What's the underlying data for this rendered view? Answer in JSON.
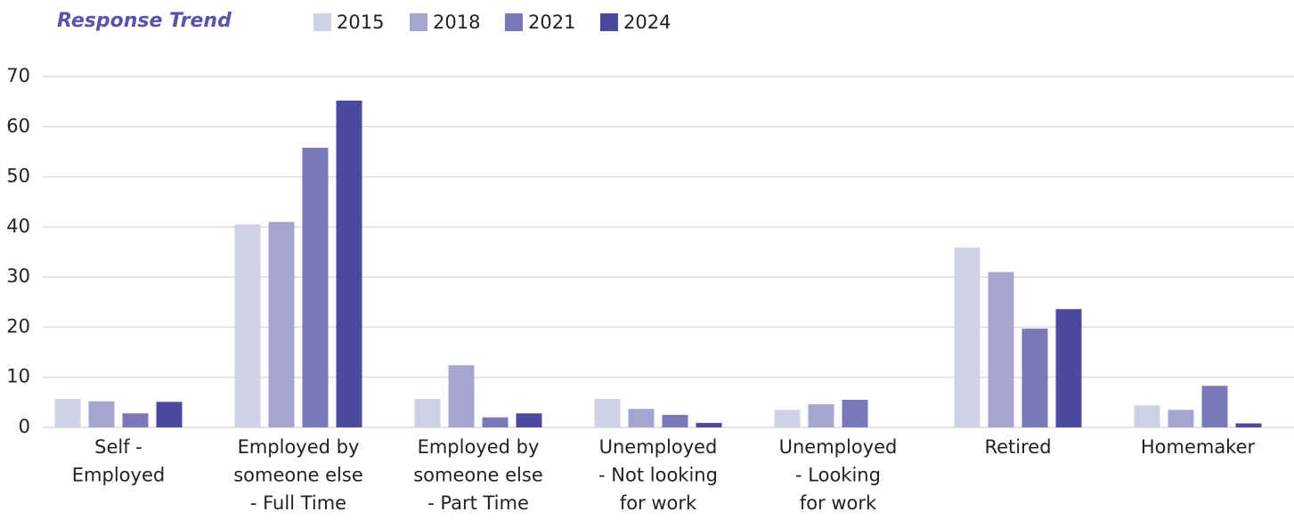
{
  "chart_data": {
    "type": "bar",
    "title": "Response Trend",
    "categories": [
      "Self -\nEmployed",
      "Employed by\nsomeone else\n- Full Time",
      "Employed by\nsomeone else\n- Part Time",
      "Unemployed\n- Not looking\nfor work",
      "Unemployed\n- Looking\nfor work",
      "Retired",
      "Homemaker"
    ],
    "series": [
      {
        "name": "2015",
        "color": "#d0d0e6",
        "values": [
          5.7,
          40.5,
          5.7,
          5.7,
          3.5,
          35.9,
          4.4
        ]
      },
      {
        "name": "2018",
        "color": "#a6a5d0",
        "values": [
          5.2,
          41,
          12.4,
          3.7,
          4.6,
          31,
          3.5
        ]
      },
      {
        "name": "2021",
        "color": "#7a78b8",
        "values": [
          2.8,
          55.8,
          2,
          2.5,
          5.5,
          19.7,
          8.3
        ]
      },
      {
        "name": "2024",
        "color": "#4b4a9e",
        "values": [
          5.1,
          65.2,
          2.8,
          0.9,
          null,
          23.6,
          0.8
        ]
      }
    ],
    "ylim": [
      0,
      70
    ],
    "yticks": [
      0,
      10,
      20,
      30,
      40,
      50,
      60,
      70
    ],
    "grid": true
  }
}
